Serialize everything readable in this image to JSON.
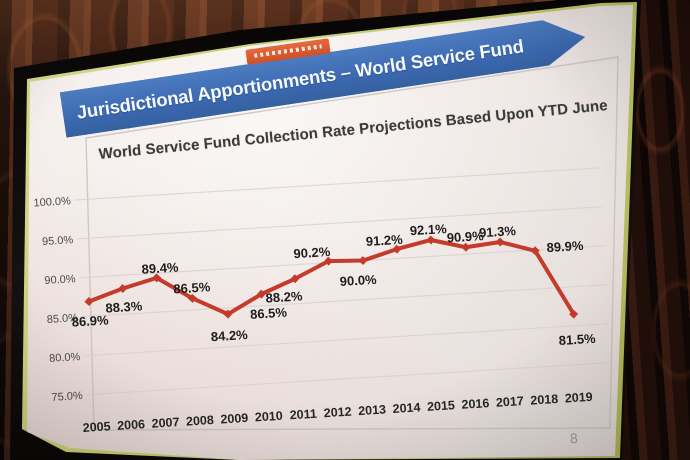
{
  "slide": {
    "banner_title": "Jurisdictional Apportionments – World Service Fund",
    "page_number": "8",
    "colors": {
      "banner_blue": "#3f6db4",
      "badge_orange": "#d95b31",
      "screen_rim_green": "#c6cb6c",
      "slide_background": "#f1ebe9"
    }
  },
  "chart_data": {
    "type": "line",
    "title": "World Service Fund Collection Rate Projections Based Upon YTD June",
    "categories": [
      "2005",
      "2006",
      "2007",
      "2008",
      "2009",
      "2010",
      "2011",
      "2012",
      "2013",
      "2014",
      "2015",
      "2016",
      "2017",
      "2018",
      "2019"
    ],
    "values": [
      86.9,
      88.3,
      89.4,
      86.5,
      84.2,
      86.5,
      88.2,
      90.2,
      90.0,
      91.2,
      92.1,
      90.9,
      91.3,
      89.9,
      81.5
    ],
    "data_labels": [
      "86.9%",
      "88.3%",
      "89.4%",
      "86.5%",
      "84.2%",
      "86.5%",
      "88.2%",
      "90.2%",
      "90.0%",
      "91.2%",
      "92.1%",
      "90.9%",
      "91.3%",
      "89.9%",
      "81.5%"
    ],
    "yticks": [
      "100.0%",
      "95.0%",
      "90.0%",
      "85.0%",
      "80.0%",
      "75.0%"
    ],
    "ylim": [
      75,
      100
    ],
    "xlabel": "",
    "ylabel": "",
    "grid": true,
    "legend": "none",
    "line_color": "#c43b2c",
    "marker": "diamond"
  }
}
